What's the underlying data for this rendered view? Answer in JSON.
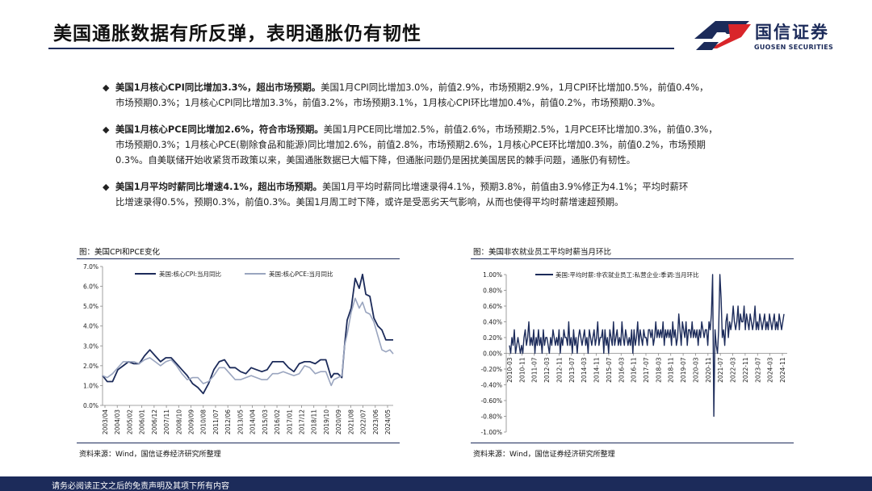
{
  "header": {
    "title": "美国通胀数据有所反弹，表明通胀仍有韧性",
    "logo_cn": "国信证券",
    "logo_en": "GUOSEN SECURITIES"
  },
  "bullets": [
    {
      "bold": "美国1月核心CPI同比增加3.3%，超出市场预期。",
      "line1": "美国1月CPI同比增加3.0%，前值2.9%，市场预期2.9%，1月CPI环比增加0.5%，前值0.4%，",
      "line2": "市场预期0.3%；1月核心CPI同比增加3.3%，前值3.2%，市场预期3.1%，1月核心CPI环比增加0.4%，前值0.2%，市场预期0.3%。"
    },
    {
      "bold": "美国1月核心PCE同比增加2.6%，符合市场预期。",
      "line1": "美国1月PCE同比增加2.5%，前值2.6%，市场预期2.5%，1月PCE环比增加0.3%，前值0.3%，",
      "line2": "市场预期0.3%；1月核心PCE(剔除食品和能源)同比增加2.6%，前值2.8%，市场预期2.6%，1月核心PCE环比增加0.3%，前值0.2%，市场预期",
      "line3": "0.3%。自美联储开始收紧货币政策以来，美国通胀数据已大幅下降，但通胀问题仍是困扰美国居民的棘手问题，通胀仍有韧性。"
    },
    {
      "bold": "美国1月平均时薪同比增速4.1%，超出市场预期。",
      "line1": "美国1月平均时薪同比增速录得4.1%，预期3.8%，前值由3.9%修正为4.1%；平均时薪环",
      "line2": "比增速录得0.5%，预期0.3%，前值0.3%。美国1月周工时下降，或许是受恶劣天气影响，从而也使得平均时薪增速超预期。"
    }
  ],
  "left_chart": {
    "caption": "图：美国CPI和PCE变化",
    "source": "资料来源：Wind，国信证券经济研究所整理"
  },
  "right_chart": {
    "caption": "图：美国非农就业员工平均时薪当月环比",
    "source": "资料来源：Wind，国信证券经济研究所整理"
  },
  "footer": {
    "text": "请务必阅读正文之后的免责声明及其项下所有内容"
  },
  "colors": {
    "navy": "#1c2b5a",
    "series_cpi": "#1c2b5a",
    "series_pce": "#9aa5bf",
    "logo_red": "#d9252a"
  },
  "chart_data": [
    {
      "type": "line",
      "ylim": [
        0,
        7
      ],
      "yticks": [
        "0.0%",
        "1.0%",
        "2.0%",
        "3.0%",
        "4.0%",
        "5.0%",
        "6.0%",
        "7.0%"
      ],
      "xticks": [
        "2003/04",
        "2004/03",
        "2005/02",
        "2006/01",
        "2006/12",
        "2007/11",
        "2008/10",
        "2009/09",
        "2010/08",
        "2011/07",
        "2012/06",
        "2013/05",
        "2014/04",
        "2015/03",
        "2016/02",
        "2017/01",
        "2017/12",
        "2018/11",
        "2019/10",
        "2020/09",
        "2021/08",
        "2022/07",
        "2023/06",
        "2024/05"
      ],
      "x_start": 2003.25,
      "x_end": 2025.05,
      "series": [
        {
          "name": "美国:核心CPI:当月同比",
          "x": [
            2003.25,
            2003.6,
            2004.0,
            2004.4,
            2004.8,
            2005.2,
            2005.6,
            2006.0,
            2006.4,
            2006.8,
            2007.2,
            2007.6,
            2008.0,
            2008.4,
            2008.8,
            2009.2,
            2009.6,
            2010.0,
            2010.4,
            2010.8,
            2011.2,
            2011.6,
            2012.0,
            2012.4,
            2012.8,
            2013.2,
            2013.6,
            2014.0,
            2014.4,
            2014.8,
            2015.2,
            2015.6,
            2016.0,
            2016.4,
            2016.8,
            2017.2,
            2017.6,
            2018.0,
            2018.4,
            2018.8,
            2019.2,
            2019.6,
            2020.0,
            2020.4,
            2020.6,
            2020.9,
            2021.2,
            2021.4,
            2021.6,
            2021.9,
            2022.2,
            2022.5,
            2022.75,
            2023.0,
            2023.3,
            2023.6,
            2023.9,
            2024.2,
            2024.5,
            2024.8,
            2025.05
          ],
          "values": [
            1.5,
            1.2,
            1.2,
            1.8,
            2.0,
            2.2,
            2.1,
            2.1,
            2.5,
            2.8,
            2.5,
            2.2,
            2.4,
            2.4,
            2.1,
            1.8,
            1.5,
            1.1,
            0.9,
            0.6,
            1.1,
            1.8,
            2.2,
            2.3,
            1.9,
            1.9,
            1.7,
            1.6,
            1.9,
            1.8,
            1.7,
            1.8,
            2.2,
            2.2,
            2.2,
            1.9,
            1.7,
            2.1,
            2.2,
            2.2,
            2.1,
            2.3,
            2.3,
            1.4,
            1.6,
            1.6,
            1.4,
            3.0,
            4.3,
            4.9,
            6.4,
            5.9,
            6.6,
            5.6,
            5.5,
            4.4,
            4.0,
            3.8,
            3.3,
            3.3,
            3.3
          ]
        },
        {
          "name": "美国:核心PCE:当月同比",
          "x": [
            2003.25,
            2003.6,
            2004.0,
            2004.4,
            2004.8,
            2005.2,
            2005.6,
            2006.0,
            2006.4,
            2006.8,
            2007.2,
            2007.6,
            2008.0,
            2008.4,
            2008.8,
            2009.2,
            2009.6,
            2010.0,
            2010.4,
            2010.8,
            2011.2,
            2011.6,
            2012.0,
            2012.4,
            2012.8,
            2013.2,
            2013.6,
            2014.0,
            2014.4,
            2014.8,
            2015.2,
            2015.6,
            2016.0,
            2016.4,
            2016.8,
            2017.2,
            2017.6,
            2018.0,
            2018.4,
            2018.8,
            2019.2,
            2019.6,
            2020.0,
            2020.4,
            2020.6,
            2020.9,
            2021.2,
            2021.4,
            2021.6,
            2021.9,
            2022.2,
            2022.5,
            2022.75,
            2023.0,
            2023.3,
            2023.6,
            2023.9,
            2024.2,
            2024.5,
            2024.8,
            2025.05
          ],
          "values": [
            1.5,
            1.4,
            1.6,
            1.9,
            2.2,
            2.2,
            2.2,
            2.1,
            2.3,
            2.4,
            2.2,
            2.0,
            2.2,
            2.3,
            2.0,
            1.6,
            1.3,
            1.4,
            1.4,
            1.1,
            1.2,
            1.5,
            1.9,
            1.9,
            1.6,
            1.3,
            1.3,
            1.4,
            1.5,
            1.4,
            1.3,
            1.3,
            1.6,
            1.6,
            1.7,
            1.6,
            1.5,
            1.6,
            2.0,
            1.9,
            1.6,
            1.7,
            1.7,
            1.0,
            1.3,
            1.4,
            1.5,
            3.0,
            3.6,
            4.7,
            5.4,
            4.9,
            5.2,
            4.7,
            4.6,
            4.2,
            3.5,
            2.8,
            2.7,
            2.8,
            2.6
          ]
        }
      ]
    },
    {
      "type": "line",
      "ylim": [
        -1.0,
        1.0
      ],
      "yticks": [
        "-1.00%",
        "-0.80%",
        "-0.60%",
        "-0.40%",
        "-0.20%",
        "0.00%",
        "0.20%",
        "0.40%",
        "0.60%",
        "0.80%",
        "1.00%"
      ],
      "xticks": [
        "2010-03",
        "2010-11",
        "2011-07",
        "2012-03",
        "2012-11",
        "2013-07",
        "2014-03",
        "2014-11",
        "2015-07",
        "2016-03",
        "2016-11",
        "2017-07",
        "2018-03",
        "2018-11",
        "2019-07",
        "2020-03",
        "2020-11",
        "2021-07",
        "2022-03",
        "2022-11",
        "2023-07",
        "2024-03",
        "2024-11"
      ],
      "x_start": "2010-03",
      "x_end": "2025-01",
      "series": [
        {
          "name": "美国:平均时薪:非农就业员工:私营企业:季调:当月环比",
          "values": [
            0.1,
            0.0,
            0.2,
            0.1,
            0.3,
            0.0,
            0.1,
            0.2,
            0.1,
            0.0,
            0.1,
            0.0,
            0.2,
            0.3,
            0.1,
            0.2,
            0.4,
            0.1,
            0.2,
            0.1,
            0.3,
            0.0,
            0.2,
            0.1,
            0.3,
            0.1,
            0.2,
            0.0,
            0.3,
            0.1,
            0.2,
            0.2,
            0.1,
            0.0,
            0.2,
            0.1,
            0.3,
            0.2,
            0.1,
            0.2,
            0.1,
            0.3,
            0.0,
            0.2,
            0.1,
            0.3,
            0.2,
            0.2,
            0.1,
            0.4,
            0.1,
            0.2,
            0.0,
            0.3,
            0.1,
            0.2,
            0.0,
            0.2,
            0.3,
            0.2,
            0.1,
            0.2,
            0.3,
            0.1,
            0.2,
            0.0,
            0.3,
            0.2,
            0.1,
            0.2,
            0.3,
            0.1,
            0.2,
            0.4,
            0.1,
            0.2,
            0.2,
            0.3,
            0.0,
            0.3,
            0.1,
            0.2,
            0.0,
            0.3,
            0.2,
            0.1,
            0.4,
            0.1,
            0.2,
            0.3,
            0.1,
            0.2,
            0.1,
            0.4,
            0.2,
            0.1,
            0.3,
            0.2,
            0.1,
            0.2,
            0.1,
            0.3,
            0.0,
            0.3,
            0.1,
            0.2,
            0.4,
            0.1,
            0.3,
            0.2,
            0.1,
            0.3,
            0.2,
            0.2,
            0.1,
            0.3,
            0.3,
            0.2,
            0.3,
            0.1,
            0.2,
            0.4,
            0.2,
            0.3,
            0.2,
            0.3,
            0.2,
            0.4,
            0.1,
            0.3,
            0.2,
            0.3,
            0.2,
            0.3,
            0.1,
            0.4,
            0.2,
            0.3,
            0.1,
            0.2,
            0.5,
            0.3,
            0.1,
            0.4,
            0.3,
            0.2,
            0.4,
            0.1,
            0.3,
            0.3,
            0.2,
            0.4,
            0.2,
            0.3,
            0.2,
            0.3,
            0.1,
            0.3,
            0.2,
            0.4,
            0.3,
            0.2,
            0.3,
            0.3,
            0.1,
            0.4,
            0.3,
            0.5,
            1.0,
            -0.8,
            0.3,
            0.1,
            0.0,
            0.3,
            1.0,
            0.7,
            0.2,
            0.3,
            0.1,
            0.4,
            0.5,
            0.2,
            0.4,
            0.3,
            0.4,
            0.6,
            0.4,
            0.3,
            0.4,
            0.6,
            0.3,
            0.5,
            0.4,
            0.4,
            0.6,
            0.3,
            0.5,
            0.4,
            0.3,
            0.5,
            0.4,
            0.3,
            0.4,
            0.6,
            0.3,
            0.4,
            0.3,
            0.5,
            0.4,
            0.3,
            0.4,
            0.5,
            0.3,
            0.4,
            0.3,
            0.5,
            0.4,
            0.3,
            0.4,
            0.5,
            0.3,
            0.4,
            0.3,
            0.5,
            0.4,
            0.3,
            0.4,
            0.5
          ]
        }
      ]
    }
  ]
}
